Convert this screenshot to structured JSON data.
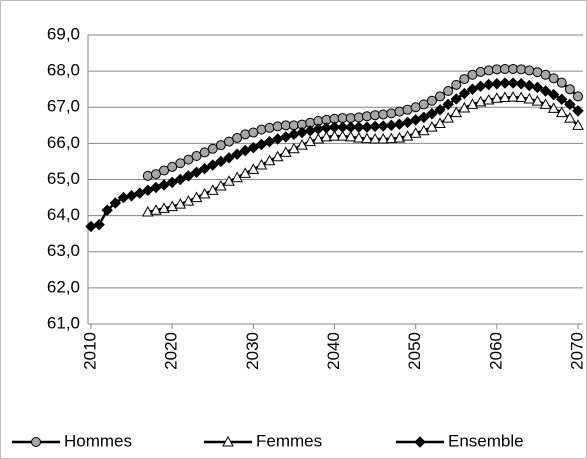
{
  "chart_data": {
    "type": "line",
    "x": [
      2010,
      2011,
      2012,
      2013,
      2014,
      2015,
      2016,
      2017,
      2018,
      2019,
      2020,
      2021,
      2022,
      2023,
      2024,
      2025,
      2026,
      2027,
      2028,
      2029,
      2030,
      2031,
      2032,
      2033,
      2034,
      2035,
      2036,
      2037,
      2038,
      2039,
      2040,
      2041,
      2042,
      2043,
      2044,
      2045,
      2046,
      2047,
      2048,
      2049,
      2050,
      2051,
      2052,
      2053,
      2054,
      2055,
      2056,
      2057,
      2058,
      2059,
      2060,
      2061,
      2062,
      2063,
      2064,
      2065,
      2066,
      2067,
      2068,
      2069,
      2070
    ],
    "series": [
      {
        "name": "Hommes",
        "color": "#a6a6a6",
        "marker": "circle",
        "values": [
          null,
          null,
          null,
          null,
          null,
          null,
          null,
          65.1,
          65.15,
          65.25,
          65.35,
          65.45,
          65.55,
          65.65,
          65.75,
          65.85,
          65.95,
          66.05,
          66.15,
          66.25,
          66.3,
          66.38,
          66.43,
          66.47,
          66.5,
          66.5,
          66.52,
          66.57,
          66.62,
          66.65,
          66.68,
          66.7,
          66.7,
          66.72,
          66.75,
          66.78,
          66.8,
          66.83,
          66.88,
          66.93,
          67.0,
          67.08,
          67.18,
          67.3,
          67.45,
          67.62,
          67.78,
          67.9,
          67.98,
          68.02,
          68.05,
          68.06,
          68.06,
          68.05,
          68.02,
          67.97,
          67.9,
          67.8,
          67.68,
          67.5,
          67.3
        ]
      },
      {
        "name": "Femmes",
        "color": "#ffffff",
        "marker": "triangle",
        "values": [
          null,
          null,
          null,
          null,
          null,
          null,
          null,
          64.1,
          64.15,
          64.2,
          64.25,
          64.32,
          64.4,
          64.5,
          64.6,
          64.7,
          64.82,
          64.95,
          65.05,
          65.17,
          65.28,
          65.4,
          65.52,
          65.63,
          65.75,
          65.85,
          65.95,
          66.05,
          66.12,
          66.18,
          66.2,
          66.2,
          66.18,
          66.15,
          66.13,
          66.12,
          66.12,
          66.13,
          66.15,
          66.2,
          66.28,
          66.35,
          66.45,
          66.55,
          66.7,
          66.85,
          66.98,
          67.08,
          67.15,
          67.2,
          67.25,
          67.27,
          67.28,
          67.27,
          67.23,
          67.17,
          67.08,
          66.97,
          66.85,
          66.7,
          66.5
        ]
      },
      {
        "name": "Ensemble",
        "color": "#000000",
        "marker": "diamond",
        "values": [
          63.7,
          63.75,
          64.15,
          64.35,
          64.5,
          64.55,
          64.62,
          64.7,
          64.78,
          64.85,
          64.92,
          65.0,
          65.1,
          65.2,
          65.3,
          65.4,
          65.5,
          65.6,
          65.7,
          65.8,
          65.88,
          65.97,
          66.05,
          66.12,
          66.18,
          66.25,
          66.3,
          66.35,
          66.4,
          66.43,
          66.45,
          66.45,
          66.45,
          66.45,
          66.45,
          66.47,
          66.48,
          66.5,
          66.53,
          66.58,
          66.65,
          66.72,
          66.82,
          66.93,
          67.08,
          67.23,
          67.38,
          67.5,
          67.58,
          67.63,
          67.65,
          67.67,
          67.67,
          67.65,
          67.6,
          67.55,
          67.45,
          67.35,
          67.22,
          67.08,
          66.9
        ]
      }
    ],
    "xlim": [
      2010,
      2070
    ],
    "xticks": [
      2010,
      2020,
      2030,
      2040,
      2050,
      2060,
      2070
    ],
    "ylim": [
      61,
      69
    ],
    "yticks": [
      {
        "value": 61,
        "label": "61,0"
      },
      {
        "value": 62,
        "label": "62,0"
      },
      {
        "value": 63,
        "label": "63,0"
      },
      {
        "value": 64,
        "label": "64,0"
      },
      {
        "value": 65,
        "label": "65,0"
      },
      {
        "value": 66,
        "label": "66,0"
      },
      {
        "value": 67,
        "label": "67,0"
      },
      {
        "value": 68,
        "label": "68,0"
      },
      {
        "value": 69,
        "label": "69,0"
      }
    ],
    "grid": true,
    "legend": "bottom"
  }
}
